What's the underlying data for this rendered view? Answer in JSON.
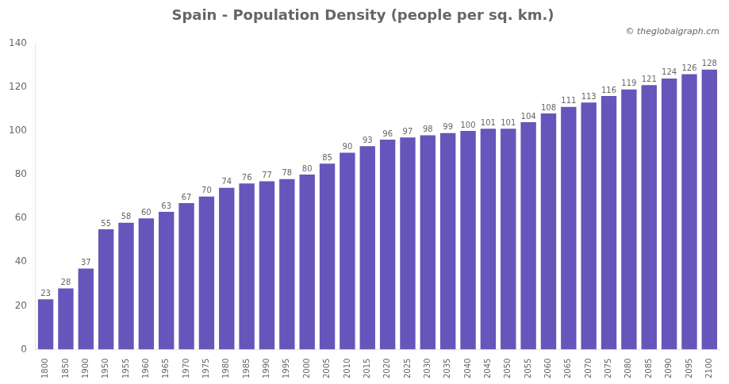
{
  "chart_data": {
    "type": "bar",
    "title": "Spain - Population Density (people per sq. km.)",
    "annotations": [
      "© theglobalgraph.cm"
    ],
    "categories": [
      "1800",
      "1850",
      "1900",
      "1950",
      "1955",
      "1960",
      "1965",
      "1970",
      "1975",
      "1980",
      "1985",
      "1990",
      "1995",
      "2000",
      "2005",
      "2010",
      "2015",
      "2020",
      "2025",
      "2030",
      "2035",
      "2040",
      "2045",
      "2050",
      "2055",
      "2060",
      "2065",
      "2070",
      "2075",
      "2080",
      "2085",
      "2090",
      "2095",
      "2100"
    ],
    "values": [
      23,
      28,
      37,
      55,
      58,
      60,
      63,
      67,
      70,
      74,
      76,
      77,
      78,
      80,
      85,
      90,
      93,
      96,
      97,
      98,
      99,
      100,
      101,
      101,
      104,
      108,
      111,
      113,
      116,
      119,
      121,
      124,
      126,
      128
    ],
    "color": "#6655bb",
    "ylim": [
      0,
      140
    ],
    "yticks": [
      0,
      20,
      40,
      60,
      80,
      100,
      120,
      140
    ],
    "grid": false,
    "data_labels": true
  }
}
